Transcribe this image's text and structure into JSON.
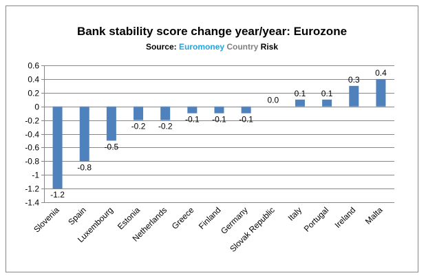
{
  "chart_data": {
    "type": "bar",
    "title": "Bank stability score change year/year: Eurozone",
    "source": {
      "prefix": "Source: ",
      "brand": "Euromoney",
      "brand_suffix": " Country",
      "rest": " Risk"
    },
    "categories": [
      "Slovenia",
      "Spain",
      "Luxembourg",
      "Estonia",
      "Netherlands",
      "Greece",
      "Finland",
      "Germany",
      "Slovak Republic",
      "Italy",
      "Portugal",
      "Ireland",
      "Malta"
    ],
    "values": [
      -1.2,
      -0.8,
      -0.5,
      -0.2,
      -0.2,
      -0.1,
      -0.1,
      -0.1,
      0.0,
      0.1,
      0.1,
      0.3,
      0.4
    ],
    "data_labels": [
      "-1.2",
      "-0.8",
      "-0.5",
      "-0.2",
      "-0.2",
      "-0.1",
      "-0.1",
      "-0.1",
      "0.0",
      "0.1",
      "0.1",
      "0.3",
      "0.4"
    ],
    "yticks": [
      0.6,
      0.4,
      0.2,
      0,
      -0.2,
      -0.4,
      -0.6,
      -0.8,
      -1,
      -1.2,
      -1.4
    ],
    "ytick_labels": [
      "0.6",
      "0.4",
      "0.2",
      "0",
      "-0.2",
      "-0.4",
      "-0.6",
      "-0.8",
      "-1",
      "-1.2",
      "-1.4"
    ],
    "ylim": [
      -1.4,
      0.6
    ],
    "xlabel": "",
    "ylabel": "",
    "grid": true,
    "legend": "none",
    "bar_color": "#4f81bd",
    "grid_color": "#868686"
  }
}
